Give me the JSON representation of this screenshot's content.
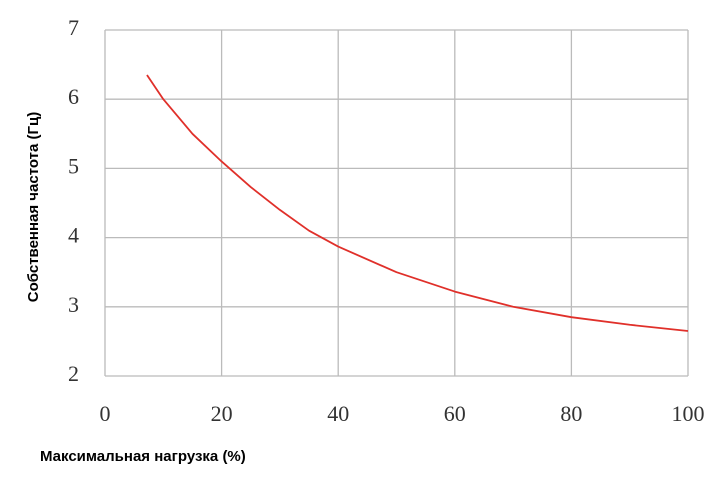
{
  "chart_data": {
    "type": "line",
    "x_label": "Максимальная нагрузка (%)",
    "y_label": "Собственная частота (Гц)",
    "x": [
      7.2,
      10,
      15,
      20,
      25,
      30,
      35,
      40,
      50,
      60,
      70,
      80,
      90,
      100
    ],
    "series": [
      {
        "color": "#e0302a",
        "values": [
          6.35,
          6.0,
          5.5,
          5.1,
          4.73,
          4.4,
          4.1,
          3.87,
          3.5,
          3.22,
          3.0,
          2.85,
          2.74,
          2.65
        ]
      }
    ],
    "xlim": [
      0,
      100
    ],
    "xticks": [
      0,
      20,
      40,
      60,
      80,
      100
    ],
    "ylim": [
      2,
      7
    ],
    "yticks": [
      2,
      3,
      4,
      5,
      6,
      7
    ],
    "grid": true
  }
}
